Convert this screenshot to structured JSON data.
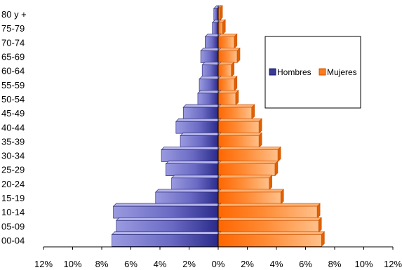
{
  "chart_data": {
    "type": "bar",
    "orientation": "horizontal",
    "layout": "population-pyramid",
    "categories": [
      "00-04",
      "05-09",
      "10-14",
      "15-19",
      "20-24",
      "25-29",
      "30-34",
      "35-39",
      "40-44",
      "45-49",
      "50-54",
      "55-59",
      "60-64",
      "65-69",
      "70-74",
      "75-79",
      "80 y +"
    ],
    "series": [
      {
        "name": "Hombres",
        "color": "#3a3a98",
        "values": [
          -7.3,
          -7.0,
          -7.2,
          -4.3,
          -3.2,
          -3.6,
          -3.9,
          -2.6,
          -2.9,
          -2.4,
          -1.4,
          -1.3,
          -1.1,
          -1.2,
          -0.9,
          -0.4,
          -0.3
        ]
      },
      {
        "name": "Mujeres",
        "color": "#ff7a1a",
        "values": [
          7.1,
          6.9,
          6.8,
          4.3,
          3.5,
          3.9,
          4.1,
          2.8,
          2.8,
          2.3,
          1.2,
          1.1,
          0.9,
          1.3,
          1.1,
          0.3,
          0.1
        ]
      }
    ],
    "xlim": [
      -12,
      12
    ],
    "x_ticks": [
      "12%",
      "10%",
      "8%",
      "6%",
      "4%",
      "2%",
      "0%",
      "2%",
      "4%",
      "6%",
      "8%",
      "10%",
      "12%"
    ],
    "xlabel": "",
    "ylabel": "",
    "title": "",
    "legend_position": "top-right",
    "grid": false
  }
}
